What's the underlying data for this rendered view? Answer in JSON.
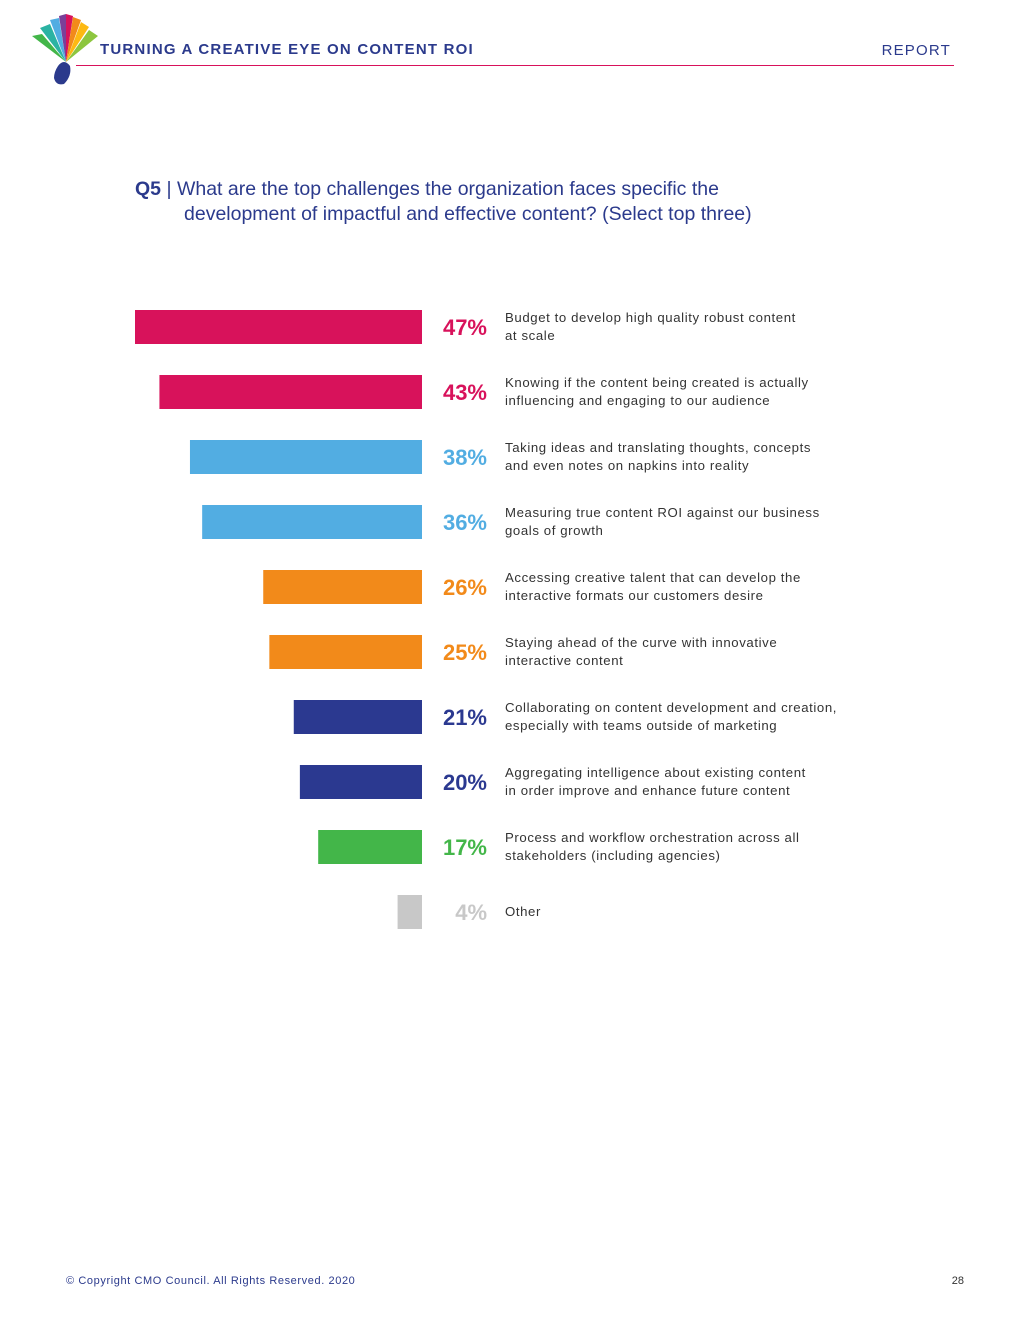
{
  "header": {
    "title": "TURNING A CREATIVE EYE ON CONTENT ROI",
    "section": "REPORT"
  },
  "question": {
    "number": "Q5",
    "separator": "|",
    "line1": "What are the top challenges the organization faces specific the",
    "line2": "development of impactful and effective content? (Select top three)"
  },
  "chart_data": {
    "type": "bar",
    "orientation": "horizontal",
    "title": "Q5 | What are the top challenges the organization faces specific the development of impactful and effective content? (Select top three)",
    "unit": "%",
    "xlim": [
      0,
      47
    ],
    "categories": [
      "Budget to develop high quality robust content at scale",
      "Knowing if the content being created is actually influencing and engaging to our audience",
      "Taking ideas and translating thoughts, concepts and even notes on napkins into reality",
      "Measuring true content ROI against our business goals of growth",
      "Accessing creative talent that can develop the interactive formats our customers desire",
      "Staying ahead of the curve with innovative interactive content",
      "Collaborating on content development and creation, especially with teams outside of marketing",
      "Aggregating intelligence about existing content in order improve and enhance future content",
      "Process and workflow orchestration across all stakeholders (including agencies)",
      "Other"
    ],
    "values": [
      47,
      43,
      38,
      36,
      26,
      25,
      21,
      20,
      17,
      4
    ],
    "value_labels": [
      "47%",
      "43%",
      "38%",
      "36%",
      "26%",
      "25%",
      "21%",
      "20%",
      "17%",
      "4%"
    ],
    "colors": [
      "#d8125b",
      "#d8125b",
      "#52ade2",
      "#52ade2",
      "#f28a1a",
      "#f28a1a",
      "#2b3990",
      "#2b3990",
      "#43b649",
      "#c8c8c8"
    ],
    "label_lines": [
      [
        "Budget to develop high quality robust content",
        "at scale"
      ],
      [
        "Knowing if the content being created is actually",
        "influencing and engaging to our audience"
      ],
      [
        "Taking ideas and translating thoughts, concepts",
        "and even notes on napkins into reality"
      ],
      [
        "Measuring true content ROI against our business",
        "goals of growth"
      ],
      [
        "Accessing creative talent that can develop the",
        "interactive formats our customers desire"
      ],
      [
        "Staying ahead of the curve with innovative",
        "interactive content"
      ],
      [
        "Collaborating on content development and creation,",
        "especially with teams outside of marketing"
      ],
      [
        "Aggregating intelligence about existing content",
        "in order improve and enhance future content"
      ],
      [
        "Process and workflow orchestration across all",
        "stakeholders (including agencies)"
      ],
      [
        "Other"
      ]
    ]
  },
  "footer": {
    "copyright": "© Copyright CMO Council. All Rights Reserved. 2020",
    "page_number": "28"
  }
}
